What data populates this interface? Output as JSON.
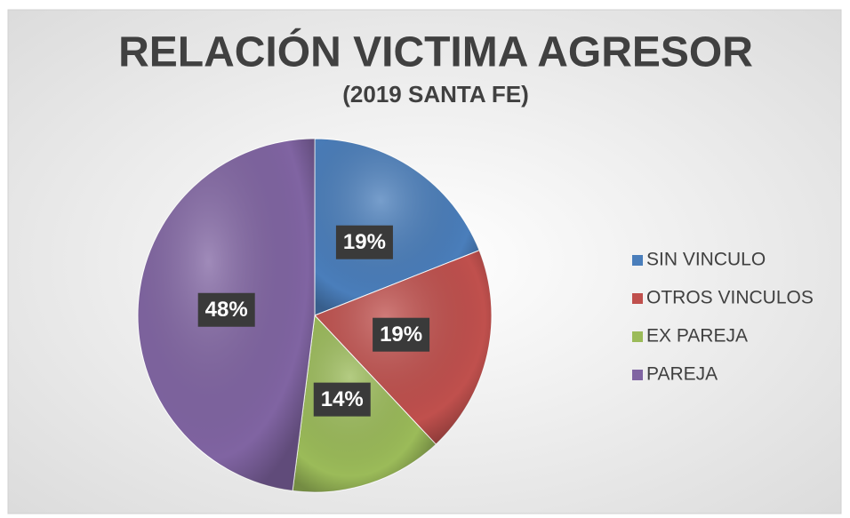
{
  "chart_data": {
    "type": "pie",
    "title": "RELACIÓN VICTIMA AGRESOR",
    "subtitle": "(2019 SANTA FE)",
    "categories": [
      "SIN VINCULO",
      "OTROS VINCULOS",
      "EX PAREJA",
      "PAREJA"
    ],
    "values": [
      19,
      19,
      14,
      48
    ],
    "value_labels": [
      "19%",
      "19%",
      "14%",
      "48%"
    ],
    "colors": [
      "#4a7ebb",
      "#c0504d",
      "#9bbb59",
      "#8064a2"
    ],
    "legend": "right"
  }
}
